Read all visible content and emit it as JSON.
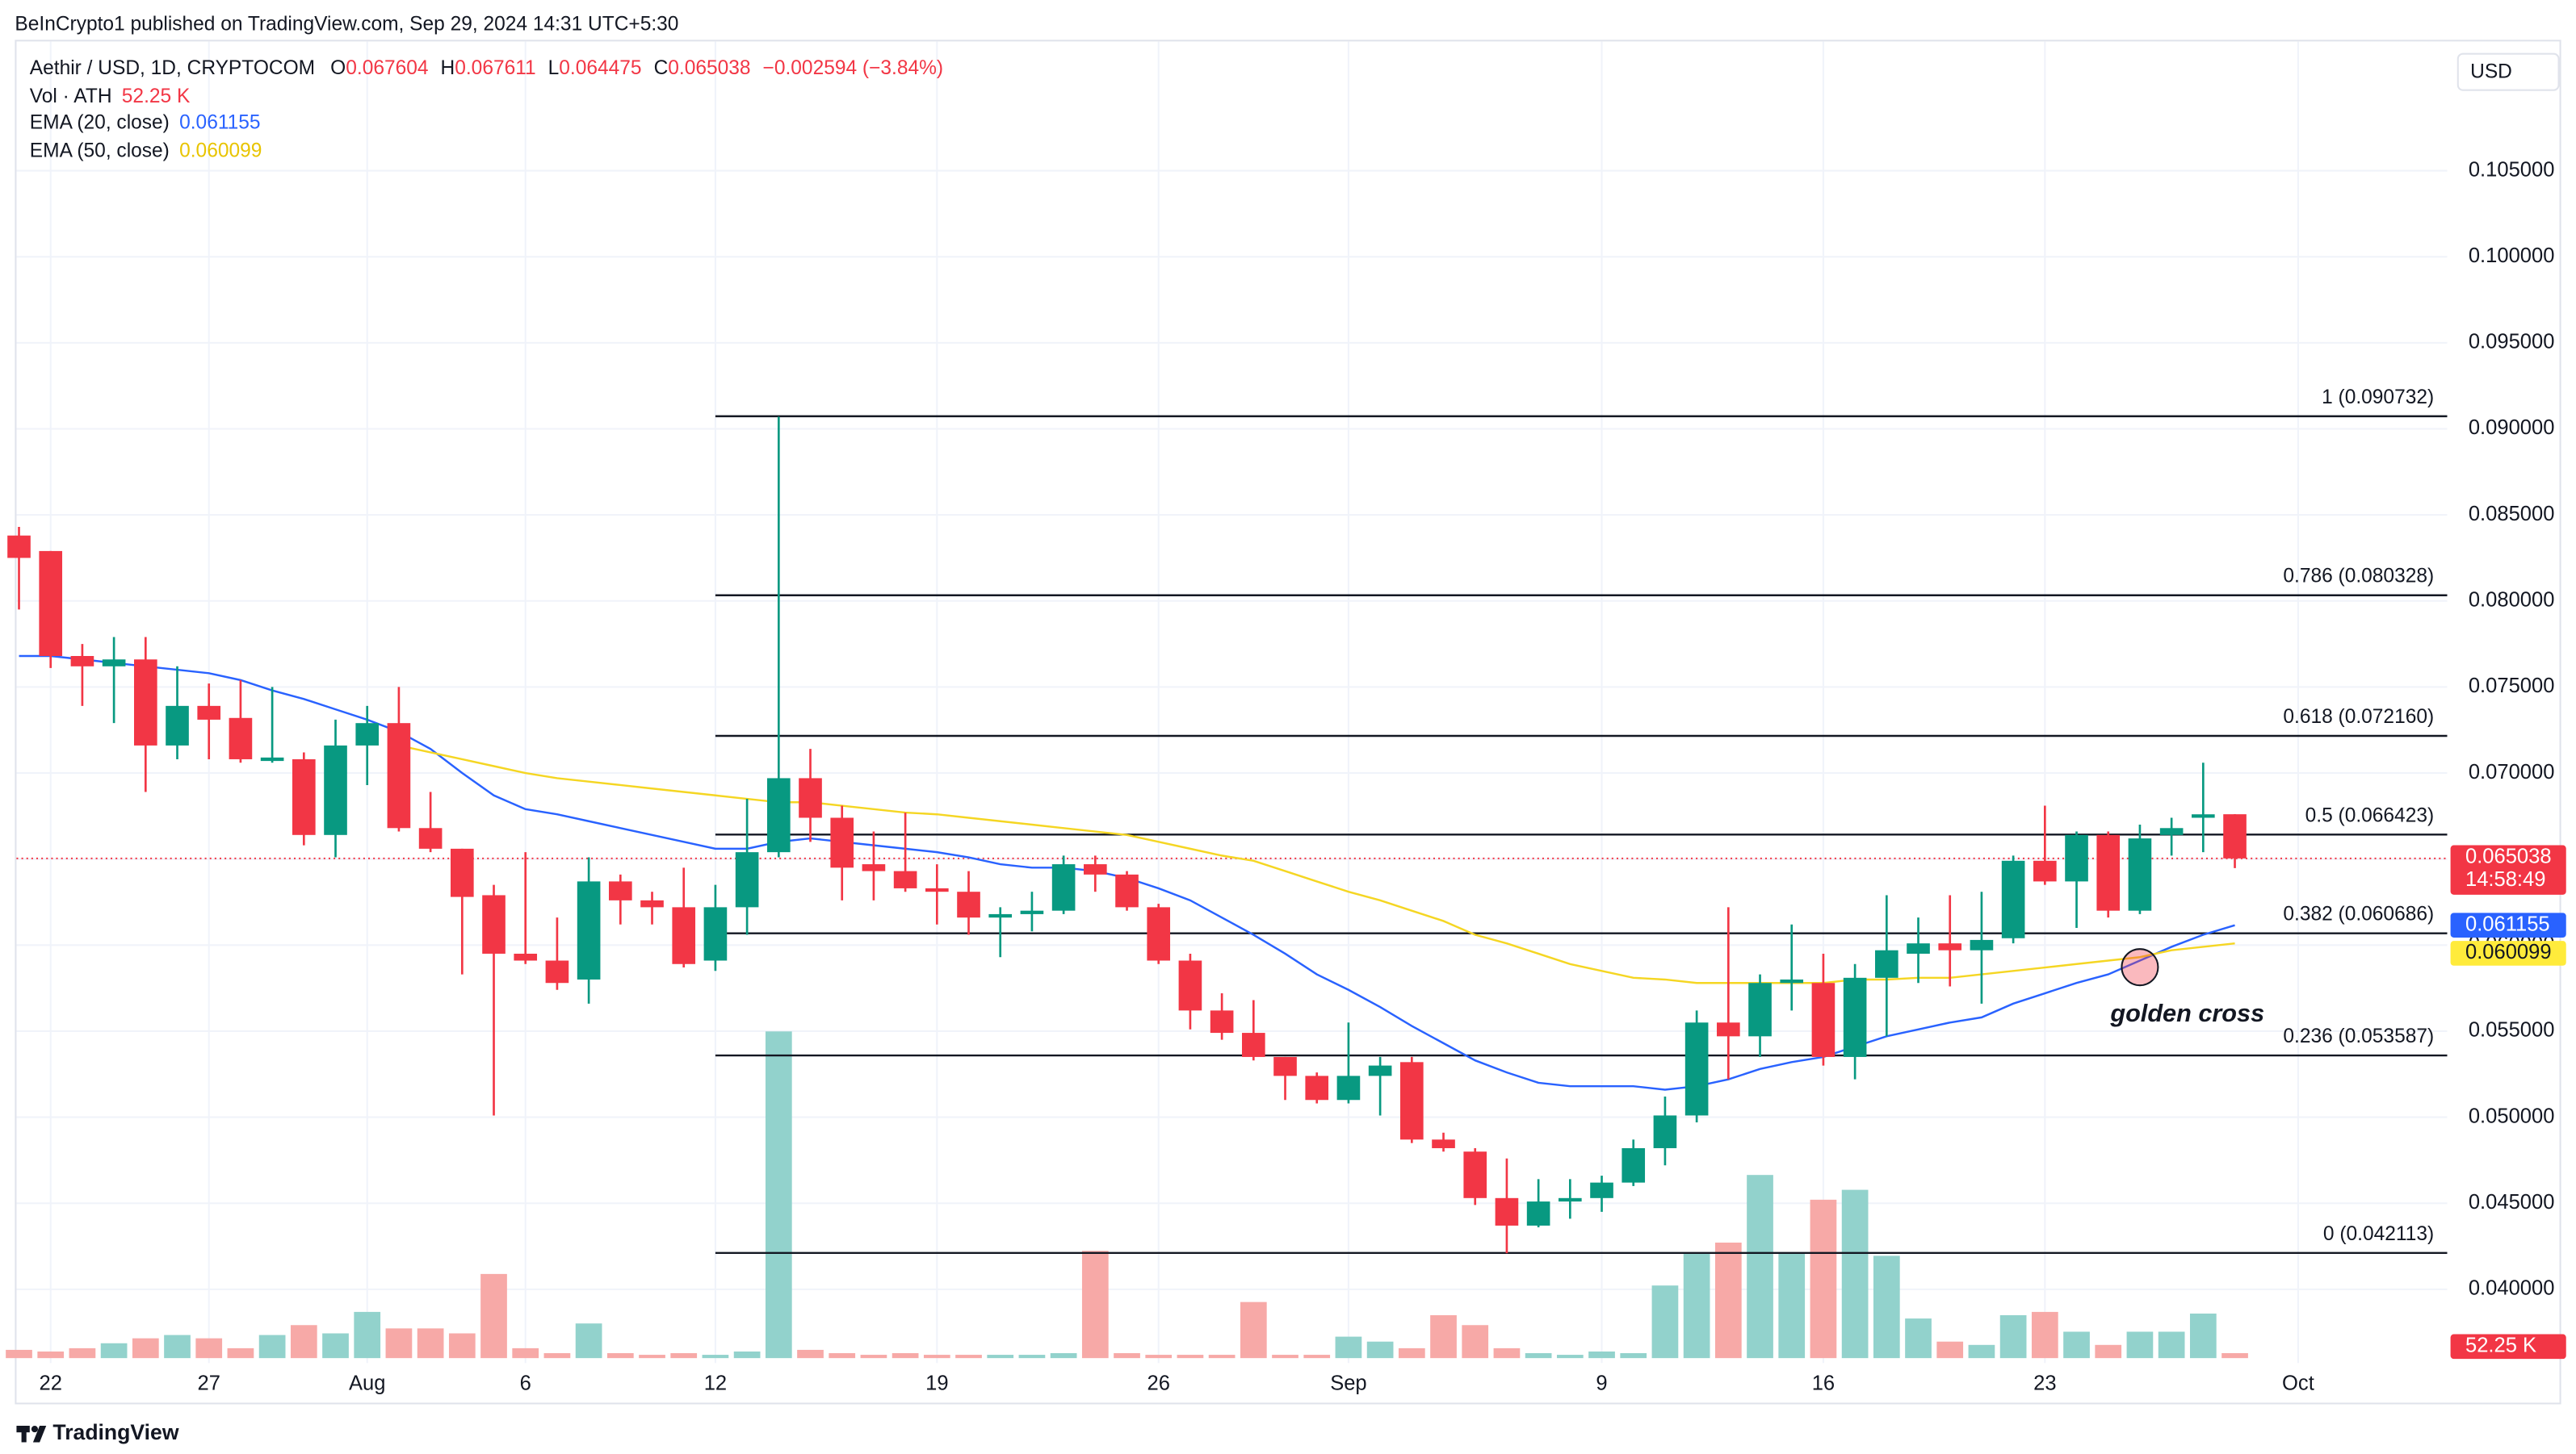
{
  "header": {
    "published": "BeInCrypto1 published on TradingView.com, Sep 29, 2024 14:31 UTC+5:30"
  },
  "chart_data": {
    "type": "candlestick",
    "title": "Aethir / USD, 1D, CRYPTOCOM",
    "ohlc_letters": [
      "O",
      "H",
      "L",
      "C"
    ],
    "change_label": "−0.002594 (−3.84%)",
    "volume_title": "Vol · ATH",
    "volume_last_label": "52.25 K",
    "currency": "USD",
    "countdown": "14:58:49",
    "annotation": "golden cross",
    "up_color": "#089981",
    "down_color": "#f23645",
    "up_volume_color": "#92d2cc",
    "down_volume_color": "#f7a9a7",
    "grid": true,
    "fib_levels": [
      {
        "label": "1 (0.090732)",
        "value": 0.090732
      },
      {
        "label": "0.786 (0.080328)",
        "value": 0.080328
      },
      {
        "label": "0.618 (0.072160)",
        "value": 0.07216
      },
      {
        "label": "0.5 (0.066423)",
        "value": 0.066423
      },
      {
        "label": "0.382 (0.060686)",
        "value": 0.060686
      },
      {
        "label": "0.236 (0.053587)",
        "value": 0.053587
      },
      {
        "label": "0 (0.042113)",
        "value": 0.042113
      }
    ],
    "categories": [
      "Jul 21",
      "Jul 22",
      "Jul 23",
      "Jul 24",
      "Jul 25",
      "Jul 26",
      "Jul 27",
      "Jul 28",
      "Jul 29",
      "Jul 30",
      "Jul 31",
      "Aug 1",
      "Aug 2",
      "Aug 3",
      "Aug 4",
      "Aug 5",
      "Aug 6",
      "Aug 7",
      "Aug 8",
      "Aug 9",
      "Aug 10",
      "Aug 11",
      "Aug 12",
      "Aug 13",
      "Aug 14",
      "Aug 15",
      "Aug 16",
      "Aug 17",
      "Aug 18",
      "Aug 19",
      "Aug 20",
      "Aug 21",
      "Aug 22",
      "Aug 23",
      "Aug 24",
      "Aug 25",
      "Aug 26",
      "Aug 27",
      "Aug 28",
      "Aug 29",
      "Aug 30",
      "Aug 31",
      "Sep 1",
      "Sep 2",
      "Sep 3",
      "Sep 4",
      "Sep 5",
      "Sep 6",
      "Sep 7",
      "Sep 8",
      "Sep 9",
      "Sep 10",
      "Sep 11",
      "Sep 12",
      "Sep 13",
      "Sep 14",
      "Sep 15",
      "Sep 16",
      "Sep 17",
      "Sep 18",
      "Sep 19",
      "Sep 20",
      "Sep 21",
      "Sep 22",
      "Sep 23",
      "Sep 24",
      "Sep 25",
      "Sep 26",
      "Sep 27",
      "Sep 28",
      "Sep 29"
    ],
    "xticks": [
      {
        "value": 1,
        "label": "22"
      },
      {
        "value": 6,
        "label": "27"
      },
      {
        "value": 11,
        "label": "Aug"
      },
      {
        "value": 16,
        "label": "6"
      },
      {
        "value": 22,
        "label": "12"
      },
      {
        "value": 29,
        "label": "19"
      },
      {
        "value": 36,
        "label": "26"
      },
      {
        "value": 42,
        "label": "Sep"
      },
      {
        "value": 50,
        "label": "9"
      },
      {
        "value": 57,
        "label": "16"
      },
      {
        "value": 64,
        "label": "23"
      },
      {
        "value": 72,
        "label": "Oct"
      }
    ],
    "ylim": [
      0.036,
      0.1128
    ],
    "yticks": [
      {
        "value": 0.04,
        "label": "0.040000"
      },
      {
        "value": 0.045,
        "label": "0.045000"
      },
      {
        "value": 0.05,
        "label": "0.050000"
      },
      {
        "value": 0.055,
        "label": "0.055000"
      },
      {
        "value": 0.06,
        "label": "0.060000"
      },
      {
        "value": 0.065,
        "label": "0.065000"
      },
      {
        "value": 0.07,
        "label": "0.070000"
      },
      {
        "value": 0.075,
        "label": "0.075000"
      },
      {
        "value": 0.08,
        "label": "0.080000"
      },
      {
        "value": 0.085,
        "label": "0.085000"
      },
      {
        "value": 0.09,
        "label": "0.090000"
      },
      {
        "value": 0.095,
        "label": "0.095000"
      },
      {
        "value": 0.1,
        "label": "0.100000"
      },
      {
        "value": 0.105,
        "label": "0.105000"
      }
    ],
    "open": [
      0.0838,
      0.0829,
      0.0768,
      0.0762,
      0.0766,
      0.0716,
      0.0739,
      0.0732,
      0.0707,
      0.0708,
      0.0664,
      0.0716,
      0.0729,
      0.0668,
      0.0656,
      0.0629,
      0.0595,
      0.0591,
      0.058,
      0.0637,
      0.0626,
      0.0622,
      0.0591,
      0.0622,
      0.0654,
      0.0697,
      0.0674,
      0.0647,
      0.0643,
      0.0633,
      0.0631,
      0.0616,
      0.0618,
      0.062,
      0.0647,
      0.0641,
      0.0622,
      0.0591,
      0.0562,
      0.0549,
      0.0535,
      0.0524,
      0.051,
      0.0524,
      0.0532,
      0.0487,
      0.048,
      0.0453,
      0.0437,
      0.0451,
      0.0453,
      0.0462,
      0.0482,
      0.0501,
      0.0555,
      0.0547,
      0.0578,
      0.0578,
      0.0535,
      0.0581,
      0.0595,
      0.0601,
      0.0597,
      0.0604,
      0.0649,
      0.0637,
      0.0664,
      0.062,
      0.0664,
      0.0674,
      0.067604
    ],
    "high": [
      0.0843,
      0.0829,
      0.0775,
      0.0779,
      0.0779,
      0.0762,
      0.0752,
      0.0754,
      0.075,
      0.0712,
      0.0731,
      0.0739,
      0.075,
      0.0689,
      0.0656,
      0.0635,
      0.0654,
      0.0616,
      0.0651,
      0.0641,
      0.0631,
      0.0645,
      0.0635,
      0.0685,
      0.0907,
      0.0714,
      0.0681,
      0.0666,
      0.0677,
      0.0647,
      0.0643,
      0.0622,
      0.0631,
      0.0652,
      0.0652,
      0.0643,
      0.0624,
      0.0595,
      0.0572,
      0.0568,
      0.0535,
      0.0526,
      0.0555,
      0.0535,
      0.0535,
      0.0491,
      0.0482,
      0.0476,
      0.0464,
      0.0464,
      0.0466,
      0.0487,
      0.0512,
      0.0562,
      0.0622,
      0.0583,
      0.0612,
      0.0595,
      0.0589,
      0.0629,
      0.0616,
      0.0629,
      0.0631,
      0.0652,
      0.0681,
      0.0666,
      0.0666,
      0.067,
      0.0674,
      0.0706,
      0.067611
    ],
    "low": [
      0.0795,
      0.0761,
      0.0739,
      0.0729,
      0.0689,
      0.0708,
      0.0708,
      0.0706,
      0.0706,
      0.0658,
      0.0651,
      0.0693,
      0.0666,
      0.0654,
      0.0583,
      0.0501,
      0.0589,
      0.0574,
      0.0566,
      0.0612,
      0.0612,
      0.0587,
      0.0585,
      0.0606,
      0.0651,
      0.066,
      0.0626,
      0.0626,
      0.0631,
      0.0612,
      0.0606,
      0.0593,
      0.0608,
      0.0618,
      0.0631,
      0.062,
      0.0589,
      0.0551,
      0.0545,
      0.0533,
      0.051,
      0.0508,
      0.0508,
      0.0501,
      0.0485,
      0.048,
      0.0449,
      0.0421,
      0.0436,
      0.0441,
      0.0445,
      0.046,
      0.0472,
      0.0497,
      0.0522,
      0.0535,
      0.0562,
      0.053,
      0.0522,
      0.0547,
      0.0578,
      0.0576,
      0.0566,
      0.0601,
      0.0635,
      0.061,
      0.0616,
      0.0618,
      0.0652,
      0.0654,
      0.064475
    ],
    "close": [
      0.0825,
      0.0768,
      0.0762,
      0.0766,
      0.0716,
      0.0739,
      0.0731,
      0.0708,
      0.0709,
      0.0664,
      0.0716,
      0.0729,
      0.0668,
      0.0656,
      0.0628,
      0.0595,
      0.0591,
      0.0578,
      0.0637,
      0.0626,
      0.0622,
      0.0589,
      0.0622,
      0.0654,
      0.0697,
      0.0674,
      0.0645,
      0.0643,
      0.0633,
      0.0631,
      0.0616,
      0.0618,
      0.062,
      0.0647,
      0.0641,
      0.0622,
      0.0591,
      0.0562,
      0.0549,
      0.0535,
      0.0524,
      0.051,
      0.0524,
      0.053,
      0.0487,
      0.0482,
      0.0453,
      0.0437,
      0.0451,
      0.0453,
      0.0462,
      0.0482,
      0.0501,
      0.0555,
      0.0547,
      0.0578,
      0.058,
      0.0535,
      0.0581,
      0.0597,
      0.0601,
      0.0597,
      0.0603,
      0.0649,
      0.0637,
      0.0664,
      0.062,
      0.0662,
      0.0668,
      0.0676,
      0.065038
    ],
    "volume": [
      87000,
      69600,
      104400,
      156600,
      208800,
      243600,
      208800,
      104400,
      243600,
      348000,
      261000,
      487200,
      313200,
      313200,
      261000,
      887400,
      104400,
      52200,
      365400,
      52200,
      34800,
      52200,
      34800,
      69600,
      3445200,
      87000,
      52200,
      34800,
      52200,
      34800,
      34800,
      34800,
      34800,
      52200,
      1131000,
      52200,
      34800,
      34800,
      34800,
      591600,
      34800,
      34800,
      226200,
      174000,
      104400,
      452400,
      348000,
      104400,
      52200,
      34800,
      69600,
      52200,
      765600,
      1113600,
      1218000,
      1931400,
      1113600,
      1670400,
      1774800,
      1078800,
      417600,
      174000,
      139200,
      452400,
      487200,
      278400,
      139200,
      278400,
      278400,
      469800,
      52250
    ],
    "series": [
      {
        "name": "EMA (20, close)",
        "color": "#2962ff",
        "values": [
          0.0768,
          0.0768,
          0.0766,
          0.0764,
          0.0762,
          0.076,
          0.0758,
          0.0754,
          0.0748,
          0.0743,
          0.0737,
          0.0731,
          0.0724,
          0.0714,
          0.07,
          0.0687,
          0.0679,
          0.0676,
          0.0672,
          0.0668,
          0.0664,
          0.066,
          0.0656,
          0.0656,
          0.066,
          0.0662,
          0.066,
          0.0658,
          0.0656,
          0.0654,
          0.0651,
          0.0647,
          0.0645,
          0.0645,
          0.0643,
          0.0639,
          0.0633,
          0.0626,
          0.0616,
          0.0606,
          0.0595,
          0.0583,
          0.0574,
          0.0564,
          0.0553,
          0.0543,
          0.0533,
          0.0526,
          0.052,
          0.0518,
          0.0518,
          0.0518,
          0.0516,
          0.0518,
          0.0522,
          0.0528,
          0.0532,
          0.0535,
          0.0541,
          0.0547,
          0.0551,
          0.0555,
          0.0558,
          0.0566,
          0.0572,
          0.0578,
          0.0583,
          0.0591,
          0.0599,
          0.0606,
          0.061155
        ]
      },
      {
        "name": "EMA (50, close)",
        "color": "#f5d623",
        "values": [
          null,
          null,
          null,
          null,
          null,
          null,
          null,
          null,
          null,
          null,
          null,
          null,
          0.0716,
          0.0712,
          0.0708,
          0.0704,
          0.07,
          0.0697,
          0.0695,
          0.0693,
          0.0691,
          0.0689,
          0.0687,
          0.0685,
          0.0683,
          0.0683,
          0.0681,
          0.0679,
          0.0677,
          0.0676,
          0.0674,
          0.0672,
          0.067,
          0.0668,
          0.0666,
          0.0664,
          0.066,
          0.0656,
          0.0652,
          0.0649,
          0.0643,
          0.0637,
          0.0631,
          0.0626,
          0.062,
          0.0614,
          0.0606,
          0.0601,
          0.0595,
          0.0589,
          0.0585,
          0.0581,
          0.058,
          0.0578,
          0.0578,
          0.0578,
          0.0578,
          0.0578,
          0.058,
          0.058,
          0.0581,
          0.0581,
          0.0583,
          0.0585,
          0.0587,
          0.0589,
          0.0591,
          0.0593,
          0.0597,
          0.0599,
          0.060099
        ]
      }
    ]
  },
  "footer": {
    "brand": "TradingView"
  }
}
